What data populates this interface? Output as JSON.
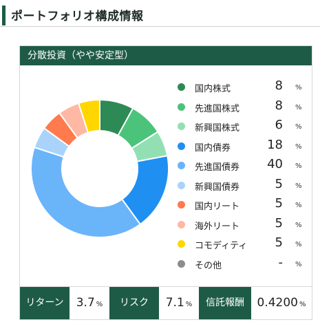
{
  "page_title": "ポートフォリオ構成情報",
  "card_title": "分散投資（やや安定型）",
  "unit": "%",
  "chart_data": {
    "type": "pie",
    "donut": true,
    "categories": [
      "国内株式",
      "先進国株式",
      "新興国株式",
      "国内債券",
      "先進国債券",
      "新興国債券",
      "国内リート",
      "海外リート",
      "コモディティ",
      "その他"
    ],
    "values": [
      8,
      8,
      6,
      18,
      40,
      5,
      5,
      5,
      5,
      null
    ],
    "display_values": [
      "8",
      "8",
      "6",
      "18",
      "40",
      "5",
      "5",
      "5",
      "5",
      "-"
    ],
    "colors": [
      "#2e8a55",
      "#4cc37b",
      "#93dfb4",
      "#1f8ff2",
      "#6ab4fa",
      "#a9d3fb",
      "#ff7a4d",
      "#ffb8a3",
      "#ffd600",
      "#8c8c8c"
    ],
    "legend_position": "right"
  },
  "stats": [
    {
      "label": "リターン",
      "value": "3.7",
      "unit": "%"
    },
    {
      "label": "リスク",
      "value": "7.1",
      "unit": "%"
    },
    {
      "label": "信託報酬",
      "value": "0.4200",
      "unit": "%"
    }
  ]
}
